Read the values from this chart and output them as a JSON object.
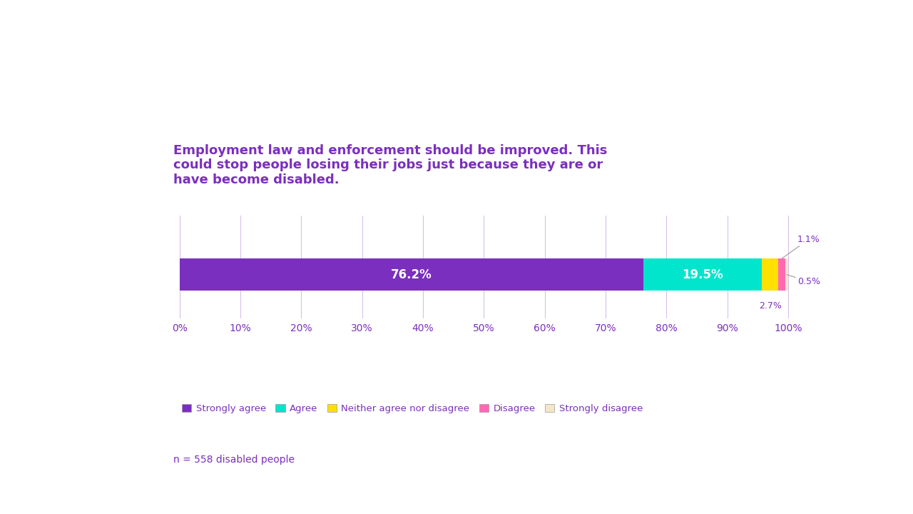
{
  "title": "Employment law and enforcement should be improved. This\ncould stop people losing their jobs just because they are or\nhave become disabled.",
  "categories": [
    "Strongly agree",
    "Agree",
    "Neither agree nor disagree",
    "Disagree",
    "Strongly disagree"
  ],
  "values": [
    76.2,
    19.5,
    2.7,
    1.1,
    0.5
  ],
  "colors": [
    "#7B2FBE",
    "#00E5CC",
    "#FFE000",
    "#FF69B4",
    "#F5E6C8"
  ],
  "xlabel_ticks": [
    0,
    10,
    20,
    30,
    40,
    50,
    60,
    70,
    80,
    90,
    100
  ],
  "tick_labels": [
    "0%",
    "10%",
    "20%",
    "30%",
    "40%",
    "50%",
    "60%",
    "70%",
    "80%",
    "90%",
    "100%"
  ],
  "n_label": "n = 558 disabled people",
  "title_color": "#7B2FBE",
  "tick_color": "#7B2FBE",
  "legend_label_color": "#7B2FBE",
  "n_label_color": "#7B2FBE",
  "background_color": "#FFFFFF",
  "grid_color": "#D8C0E8",
  "figsize": [
    12.8,
    7.2
  ],
  "dpi": 100
}
